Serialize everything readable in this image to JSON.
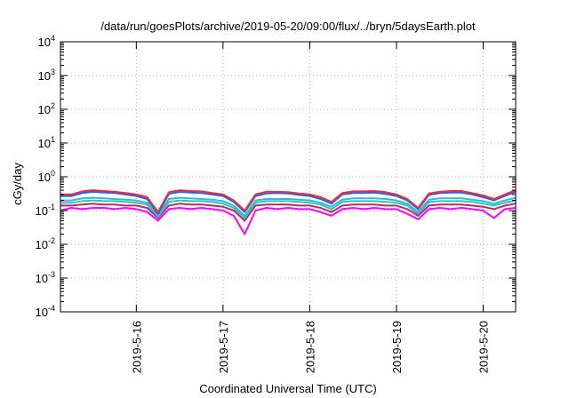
{
  "chart_data": {
    "type": "line",
    "title": "/data/run/goesPlots/archive/2019-05-20/09:00/flux/../bryn/5daysEarth.plot",
    "xlabel": "Coordinated Universal Time (UTC)",
    "ylabel": "cGy/day",
    "yscale": "log",
    "ylim": [
      0.0001,
      10000
    ],
    "xlim_days": [
      "2019-05-15 03:00",
      "2019-05-20 09:00"
    ],
    "grid": true,
    "y_ticks": [
      {
        "base": "10",
        "exp": "-4",
        "value": 0.0001
      },
      {
        "base": "10",
        "exp": "-3",
        "value": 0.001
      },
      {
        "base": "10",
        "exp": "-2",
        "value": 0.01
      },
      {
        "base": "10",
        "exp": "-1",
        "value": 0.1
      },
      {
        "base": "10",
        "exp": "0",
        "value": 1
      },
      {
        "base": "10",
        "exp": "1",
        "value": 10
      },
      {
        "base": "10",
        "exp": "2",
        "value": 100
      },
      {
        "base": "10",
        "exp": "3",
        "value": 1000
      },
      {
        "base": "10",
        "exp": "4",
        "value": 10000
      }
    ],
    "x_ticks": [
      {
        "label": "2019-5-16",
        "date": "2019-05-16 00:00"
      },
      {
        "label": "2019-5-17",
        "date": "2019-05-17 00:00"
      },
      {
        "label": "2019-5-18",
        "date": "2019-05-18 00:00"
      },
      {
        "label": "2019-5-19",
        "date": "2019-05-19 00:00"
      },
      {
        "label": "2019-5-20",
        "date": "2019-05-20 00:00"
      }
    ],
    "x": [
      "2019-05-15 03:00",
      "2019-05-15 06:00",
      "2019-05-15 09:00",
      "2019-05-15 12:00",
      "2019-05-15 15:00",
      "2019-05-15 18:00",
      "2019-05-15 21:00",
      "2019-05-16 00:00",
      "2019-05-16 03:00",
      "2019-05-16 06:00",
      "2019-05-16 09:00",
      "2019-05-16 12:00",
      "2019-05-16 15:00",
      "2019-05-16 18:00",
      "2019-05-16 21:00",
      "2019-05-17 00:00",
      "2019-05-17 03:00",
      "2019-05-17 06:00",
      "2019-05-17 09:00",
      "2019-05-17 12:00",
      "2019-05-17 15:00",
      "2019-05-17 18:00",
      "2019-05-17 21:00",
      "2019-05-18 00:00",
      "2019-05-18 03:00",
      "2019-05-18 06:00",
      "2019-05-18 09:00",
      "2019-05-18 12:00",
      "2019-05-18 15:00",
      "2019-05-18 18:00",
      "2019-05-18 21:00",
      "2019-05-19 00:00",
      "2019-05-19 03:00",
      "2019-05-19 06:00",
      "2019-05-19 09:00",
      "2019-05-19 12:00",
      "2019-05-19 15:00",
      "2019-05-19 18:00",
      "2019-05-19 21:00",
      "2019-05-20 00:00",
      "2019-05-20 03:00",
      "2019-05-20 06:00",
      "2019-05-20 09:00"
    ],
    "series": [
      {
        "color": "#e8303a",
        "values": [
          0.3,
          0.3,
          0.37,
          0.4,
          0.38,
          0.36,
          0.33,
          0.3,
          0.25,
          0.09,
          0.35,
          0.4,
          0.38,
          0.37,
          0.33,
          0.3,
          0.2,
          0.1,
          0.3,
          0.36,
          0.36,
          0.35,
          0.32,
          0.3,
          0.25,
          0.18,
          0.33,
          0.37,
          0.37,
          0.38,
          0.35,
          0.3,
          0.22,
          0.12,
          0.32,
          0.36,
          0.38,
          0.38,
          0.33,
          0.28,
          0.22,
          0.3,
          0.4
        ]
      },
      {
        "color": "#2a5ee6",
        "values": [
          0.27,
          0.27,
          0.33,
          0.36,
          0.34,
          0.33,
          0.3,
          0.27,
          0.22,
          0.08,
          0.31,
          0.36,
          0.34,
          0.33,
          0.3,
          0.27,
          0.18,
          0.09,
          0.27,
          0.32,
          0.33,
          0.32,
          0.29,
          0.27,
          0.22,
          0.16,
          0.3,
          0.33,
          0.33,
          0.34,
          0.31,
          0.27,
          0.2,
          0.11,
          0.29,
          0.33,
          0.34,
          0.34,
          0.3,
          0.25,
          0.2,
          0.27,
          0.36
        ]
      },
      {
        "color": "#2fb8e8",
        "values": [
          0.2,
          0.2,
          0.23,
          0.24,
          0.23,
          0.22,
          0.21,
          0.2,
          0.17,
          0.07,
          0.22,
          0.24,
          0.23,
          0.22,
          0.21,
          0.19,
          0.14,
          0.07,
          0.2,
          0.22,
          0.22,
          0.22,
          0.21,
          0.2,
          0.17,
          0.13,
          0.21,
          0.23,
          0.23,
          0.23,
          0.22,
          0.2,
          0.16,
          0.09,
          0.21,
          0.23,
          0.23,
          0.23,
          0.21,
          0.19,
          0.16,
          0.2,
          0.24
        ]
      },
      {
        "color": "#2cc9a6",
        "values": [
          0.17,
          0.17,
          0.19,
          0.2,
          0.19,
          0.19,
          0.18,
          0.17,
          0.15,
          0.065,
          0.18,
          0.2,
          0.19,
          0.19,
          0.18,
          0.16,
          0.12,
          0.06,
          0.17,
          0.19,
          0.19,
          0.19,
          0.18,
          0.17,
          0.15,
          0.11,
          0.18,
          0.19,
          0.19,
          0.19,
          0.18,
          0.17,
          0.14,
          0.08,
          0.18,
          0.19,
          0.19,
          0.19,
          0.18,
          0.16,
          0.14,
          0.17,
          0.2
        ]
      },
      {
        "color": "#c0246e",
        "values": [
          0.14,
          0.14,
          0.15,
          0.16,
          0.15,
          0.15,
          0.14,
          0.14,
          0.12,
          0.06,
          0.14,
          0.16,
          0.15,
          0.15,
          0.14,
          0.13,
          0.1,
          0.05,
          0.14,
          0.15,
          0.15,
          0.15,
          0.14,
          0.14,
          0.12,
          0.09,
          0.14,
          0.15,
          0.15,
          0.15,
          0.14,
          0.14,
          0.11,
          0.07,
          0.14,
          0.15,
          0.15,
          0.15,
          0.14,
          0.13,
          0.11,
          0.14,
          0.16
        ]
      },
      {
        "color": "#ff00ff",
        "values": [
          0.1,
          0.12,
          0.11,
          0.12,
          0.12,
          0.11,
          0.12,
          0.11,
          0.09,
          0.05,
          0.11,
          0.12,
          0.11,
          0.12,
          0.11,
          0.1,
          0.07,
          0.02,
          0.1,
          0.12,
          0.11,
          0.12,
          0.11,
          0.11,
          0.09,
          0.07,
          0.11,
          0.12,
          0.11,
          0.12,
          0.11,
          0.11,
          0.08,
          0.055,
          0.11,
          0.12,
          0.11,
          0.12,
          0.11,
          0.1,
          0.06,
          0.11,
          0.12
        ]
      }
    ]
  }
}
